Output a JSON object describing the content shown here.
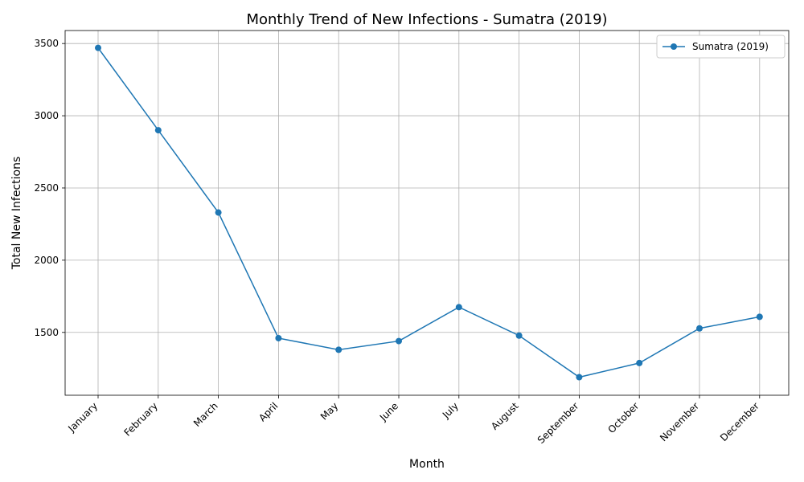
{
  "chart_data": {
    "type": "line",
    "title": "Monthly Trend of New Infections - Sumatra (2019)",
    "xlabel": "Month",
    "ylabel": "Total New Infections",
    "categories": [
      "January",
      "February",
      "March",
      "April",
      "May",
      "June",
      "July",
      "August",
      "September",
      "October",
      "November",
      "December"
    ],
    "series": [
      {
        "name": "Sumatra (2019)",
        "values": [
          3470,
          2900,
          2330,
          1460,
          1380,
          1440,
          1675,
          1478,
          1190,
          1288,
          1528,
          1608
        ],
        "color": "#1f77b4"
      }
    ],
    "ylim": [
      1065,
      3590
    ],
    "yticks": [
      1500,
      2000,
      2500,
      3000,
      3500
    ],
    "grid": true,
    "legend_position": "top-right"
  }
}
